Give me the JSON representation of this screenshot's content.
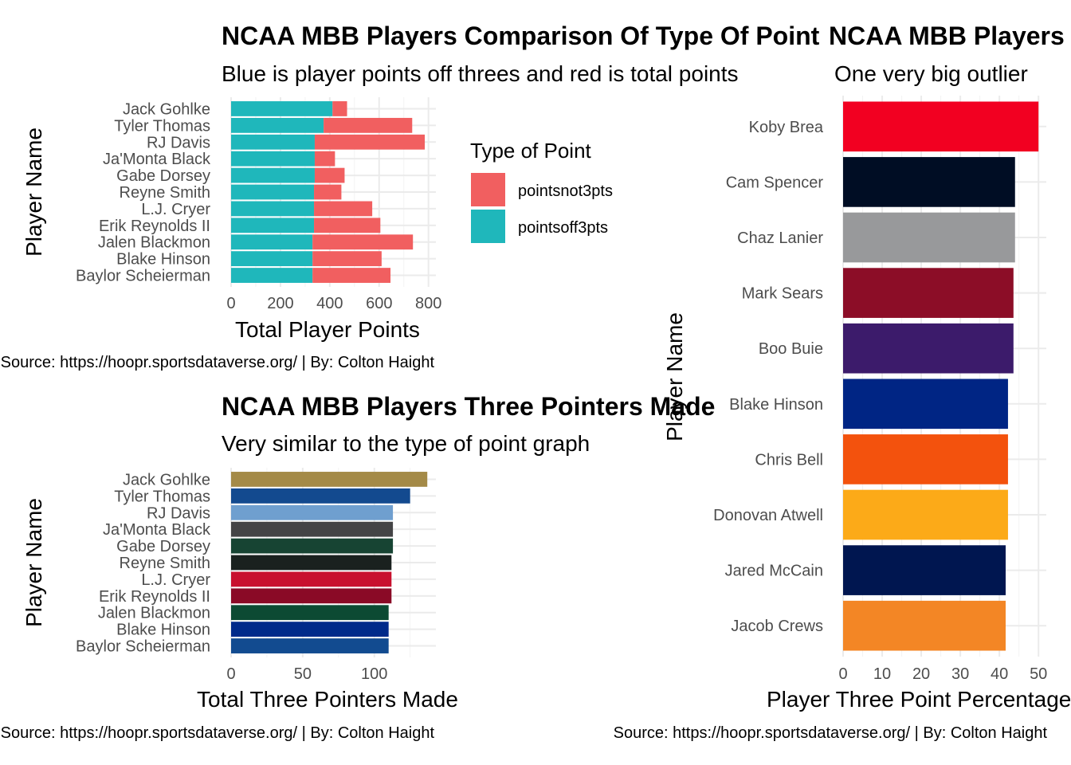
{
  "chart_data": [
    {
      "id": "points",
      "type": "bar",
      "orientation": "horizontal",
      "stacked": true,
      "title": "NCAA MBB Players Comparison Of Type Of Point",
      "subtitle": "Blue is player points off threes and red is total points",
      "xlabel": "Total Player Points",
      "ylabel": "Player Name",
      "caption": "Source: https://hoopr.sportsdataverse.org/ | By: Colton Haight",
      "categories": [
        "Jack Gohlke",
        "Tyler Thomas",
        "RJ Davis",
        "Ja'Monta Black",
        "Gabe Dorsey",
        "Reyne Smith",
        "L.J. Cryer",
        "Erik Reynolds II",
        "Jalen Blackmon",
        "Blake Hinson",
        "Baylor Scheierman"
      ],
      "series": [
        {
          "name": "pointsoff3pts",
          "color": "#1fb7bb",
          "values": [
            411,
            375,
            339,
            339,
            339,
            336,
            336,
            336,
            330,
            330,
            330
          ]
        },
        {
          "name": "pointsnot3pts",
          "color": "#f15f60",
          "values": [
            59,
            359,
            446,
            82,
            121,
            111,
            236,
            269,
            407,
            280,
            316
          ]
        }
      ],
      "xlim": [
        0,
        830
      ],
      "xticks": [
        0,
        200,
        400,
        600,
        800
      ],
      "grid": true,
      "legend": {
        "title": "Type of Point",
        "position": "right",
        "entries": [
          "pointsnot3pts",
          "pointsoff3pts"
        ]
      }
    },
    {
      "id": "threes",
      "type": "bar",
      "orientation": "horizontal",
      "title": "NCAA MBB Players Three Pointers Made",
      "subtitle": "Very similar to the type of point graph",
      "xlabel": "Total Three Pointers Made",
      "ylabel": "Player Name",
      "caption": "Source: https://hoopr.sportsdataverse.org/ | By: Colton Haight",
      "categories": [
        "Jack Gohlke",
        "Tyler Thomas",
        "RJ Davis",
        "Ja'Monta Black",
        "Gabe Dorsey",
        "Reyne Smith",
        "L.J. Cryer",
        "Erik Reynolds II",
        "Jalen Blackmon",
        "Blake Hinson",
        "Baylor Scheierman"
      ],
      "values": [
        137,
        125,
        113,
        113,
        113,
        112,
        112,
        112,
        110,
        110,
        110
      ],
      "colors": [
        "#a48a47",
        "#134a8f",
        "#6f9fcf",
        "#444446",
        "#174433",
        "#1a211f",
        "#c8102e",
        "#8a0a26",
        "#0c4a33",
        "#002a8a",
        "#124b90"
      ],
      "xlim": [
        0,
        143
      ],
      "xticks": [
        0,
        50,
        100
      ],
      "grid": true
    },
    {
      "id": "percent",
      "type": "bar",
      "orientation": "horizontal",
      "title": "NCAA MBB Players Three Point Percentage",
      "subtitle": "One very big outlier",
      "xlabel": "Player Three Point Percentage",
      "ylabel": "Player Name",
      "caption": "Source: https://hoopr.sportsdataverse.org/ | By: Colton Haight",
      "categories": [
        "Koby Brea",
        "Cam Spencer",
        "Chaz Lanier",
        "Mark Sears",
        "Boo Buie",
        "Blake Hinson",
        "Chris Bell",
        "Donovan Atwell",
        "Jared McCain",
        "Jacob Crews"
      ],
      "values": [
        50.0,
        44.0,
        44.0,
        43.6,
        43.6,
        42.2,
        42.2,
        42.2,
        41.6,
        41.6
      ],
      "colors": [
        "#f20021",
        "#000d24",
        "#98999b",
        "#8c0d27",
        "#3c1b6b",
        "#002584",
        "#f3520d",
        "#fcaa18",
        "#001650",
        "#f38625"
      ],
      "xlim": [
        0,
        52
      ],
      "xticks": [
        0,
        10,
        20,
        30,
        40,
        50
      ],
      "grid": true
    }
  ]
}
